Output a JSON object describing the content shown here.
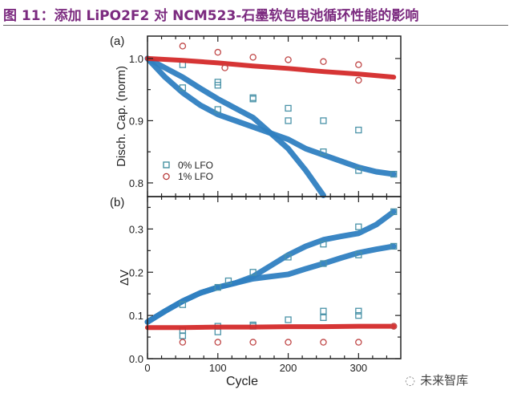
{
  "title": "图 11：添加 LiPO2F2 对 NCM523-石墨软包电池循环性能的影响",
  "watermark": "未来智库",
  "watermark_icon": "wechat-icon",
  "chart_data": [
    {
      "type": "scatter",
      "panel_label": "(a)",
      "xlabel": "",
      "ylabel": "Disch. Cap. (norm)",
      "xlim": [
        0,
        360
      ],
      "ylim": [
        0.778,
        1.036
      ],
      "xticks": [
        0,
        100,
        200,
        300
      ],
      "yticks": [
        0.8,
        0.9,
        1.0
      ],
      "ytick_labels": [
        "0.8",
        "0.9",
        "1.0"
      ],
      "legend": {
        "placement": "bottom-left",
        "entries": [
          {
            "label": "0% LFO",
            "marker": "square",
            "color": "#3a8a9a"
          },
          {
            "label": "1% LFO",
            "marker": "circle",
            "color": "#b83a3a"
          }
        ]
      },
      "series": [
        {
          "name": "0% LFO",
          "color": "#2f7fc1",
          "marker": "square",
          "curves": [
            {
              "x": [
                0,
                25,
                50,
                75,
                100,
                125,
                150,
                175,
                200,
                225,
                250,
                275,
                300,
                325,
                350
              ],
              "y": [
                1.0,
                0.985,
                0.97,
                0.952,
                0.935,
                0.92,
                0.905,
                0.88,
                0.855,
                0.82,
                0.78,
                null,
                null,
                null,
                null
              ]
            },
            {
              "x": [
                0,
                25,
                50,
                75,
                100,
                125,
                150,
                175,
                200,
                225,
                250,
                275,
                300,
                325,
                350
              ],
              "y": [
                1.0,
                0.97,
                0.945,
                0.925,
                0.91,
                0.9,
                0.89,
                0.88,
                0.87,
                0.855,
                0.845,
                0.835,
                0.825,
                0.818,
                0.814
              ]
            }
          ],
          "outliers": {
            "x": [
              50,
              50,
              100,
              100,
              100,
              150,
              150,
              200,
              200,
              250,
              250,
              300,
              300,
              350
            ],
            "y": [
              0.99,
              0.953,
              0.962,
              0.957,
              0.918,
              0.937,
              0.935,
              0.92,
              0.9,
              0.9,
              0.85,
              0.885,
              0.82,
              0.814
            ]
          }
        },
        {
          "name": "1% LFO",
          "color": "#d42a2a",
          "marker": "circle",
          "curves": [
            {
              "x": [
                0,
                50,
                100,
                150,
                200,
                250,
                300,
                350
              ],
              "y": [
                1.0,
                0.997,
                0.993,
                0.988,
                0.984,
                0.979,
                0.975,
                0.97
              ]
            }
          ],
          "outliers": {
            "x": [
              50,
              100,
              110,
              150,
              200,
              250,
              300,
              300
            ],
            "y": [
              1.02,
              1.01,
              0.985,
              1.002,
              0.998,
              0.995,
              0.99,
              0.965
            ]
          }
        }
      ]
    },
    {
      "type": "scatter",
      "panel_label": "(b)",
      "xlabel": "Cycle",
      "ylabel": "ΔV",
      "xlim": [
        0,
        360
      ],
      "ylim": [
        0,
        0.375
      ],
      "xticks": [
        0,
        100,
        200,
        300
      ],
      "xtick_labels": [
        "0",
        "100",
        "200",
        "300"
      ],
      "yticks": [
        0.0,
        0.1,
        0.2,
        0.3
      ],
      "ytick_labels": [
        "0.0",
        "0.1",
        "0.2",
        "0.3"
      ],
      "series": [
        {
          "name": "0% LFO",
          "color": "#2f7fc1",
          "marker": "square",
          "curves": [
            {
              "x": [
                0,
                25,
                50,
                75,
                100,
                125,
                150,
                175,
                200,
                225,
                250,
                275,
                300,
                325,
                350
              ],
              "y": [
                0.085,
                0.11,
                0.133,
                0.152,
                0.165,
                0.175,
                0.19,
                0.215,
                0.24,
                0.26,
                0.275,
                0.283,
                0.29,
                0.31,
                0.34
              ]
            },
            {
              "x": [
                0,
                25,
                50,
                75,
                100,
                125,
                150,
                175,
                200,
                225,
                250,
                275,
                300,
                325,
                350
              ],
              "y": [
                0.085,
                0.11,
                0.133,
                0.152,
                0.165,
                0.175,
                0.185,
                0.19,
                0.195,
                0.208,
                0.22,
                0.233,
                0.245,
                0.253,
                0.26
              ]
            }
          ],
          "outliers": {
            "x": [
              50,
              50,
              50,
              100,
              100,
              100,
              115,
              150,
              150,
              150,
              200,
              200,
              250,
              250,
              250,
              250,
              300,
              300,
              300,
              300,
              350,
              350
            ],
            "y": [
              0.125,
              0.065,
              0.053,
              0.165,
              0.075,
              0.062,
              0.18,
              0.2,
              0.078,
              0.075,
              0.235,
              0.09,
              0.265,
              0.22,
              0.11,
              0.095,
              0.305,
              0.24,
              0.11,
              0.1,
              0.34,
              0.26
            ]
          }
        },
        {
          "name": "1% LFO",
          "color": "#d42a2a",
          "marker": "circle",
          "curves": [
            {
              "x": [
                0,
                50,
                100,
                150,
                200,
                250,
                300,
                350
              ],
              "y": [
                0.072,
                0.072,
                0.073,
                0.073,
                0.074,
                0.074,
                0.075,
                0.075
              ]
            }
          ],
          "outliers": {
            "x": [
              50,
              100,
              150,
              200,
              250,
              300,
              350
            ],
            "y": [
              0.038,
              0.038,
              0.038,
              0.038,
              0.038,
              0.038,
              0.075
            ]
          }
        }
      ]
    }
  ]
}
